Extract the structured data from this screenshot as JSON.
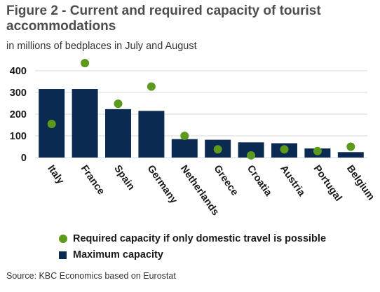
{
  "chart_data": {
    "type": "bar",
    "title": "Figure 2 - Current and required capacity of tourist accommodations",
    "subtitle": "in millions of bedplaces in July and August",
    "categories": [
      "Italy",
      "France",
      "Spain",
      "Germany",
      "Netherlands",
      "Greece",
      "Croatia",
      "Austria",
      "Portugal",
      "Belgium"
    ],
    "series": [
      {
        "name": "Maximum capacity",
        "kind": "bar",
        "color": "#0b2a52",
        "values": [
          316,
          316,
          223,
          215,
          85,
          82,
          70,
          66,
          42,
          25
        ]
      },
      {
        "name": "Required capacity if only domestic travel is possible",
        "kind": "dot",
        "color": "#5c9a1e",
        "values": [
          155,
          435,
          248,
          327,
          100,
          38,
          10,
          38,
          30,
          50
        ]
      }
    ],
    "ylim": [
      0,
      400
    ],
    "yticks": [
      0,
      100,
      200,
      300,
      400
    ],
    "grid": true,
    "legend_position": "bottom"
  },
  "source": "Source: KBC Economics based on Eurostat"
}
